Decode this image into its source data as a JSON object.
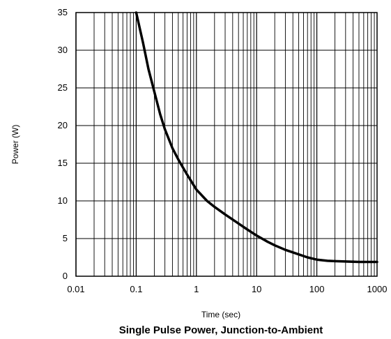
{
  "chart_data": {
    "type": "line",
    "title": "Single Pulse Power, Junction-to-Ambient",
    "xlabel": "Time (sec)",
    "ylabel": "Power (W)",
    "x_scale": "log",
    "xlim": [
      0.01,
      1000
    ],
    "ylim": [
      0,
      35
    ],
    "x_ticks": [
      "0.01",
      "0.1",
      "1",
      "10",
      "100",
      "1000"
    ],
    "y_ticks": [
      "0",
      "5",
      "10",
      "15",
      "20",
      "25",
      "30",
      "35"
    ],
    "grid": true,
    "series": [
      {
        "x": [
          0.1,
          0.13,
          0.16,
          0.2,
          0.25,
          0.3,
          0.4,
          0.5,
          0.7,
          1,
          1.5,
          2,
          3,
          5,
          7,
          10,
          15,
          20,
          30,
          50,
          70,
          100,
          150,
          200,
          300,
          500,
          700,
          1000
        ],
        "y": [
          35,
          31,
          27.5,
          24.5,
          21.5,
          19.5,
          17,
          15.5,
          13.5,
          11.5,
          10,
          9.2,
          8.2,
          7,
          6.2,
          5.4,
          4.6,
          4.1,
          3.5,
          2.9,
          2.5,
          2.2,
          2.05,
          2.0,
          1.95,
          1.9,
          1.9,
          1.9
        ]
      }
    ],
    "line_color": "#000000"
  }
}
